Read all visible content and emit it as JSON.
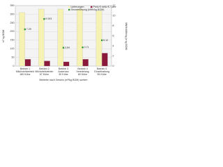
{
  "chart_data": {
    "type": "bar",
    "x_label": "Betriebe nach Gewinn (m³/kg BOM) sortiert",
    "y_label": "m³ kg BOM",
    "y2_label": "MWh/kWh/kg je kg BOM",
    "categories": [
      "Betrieb 1 Milchviehbetrieb 180 Kühe",
      "Betrieb 2 Milchviehbetrieb 57 Kühe",
      "Betrieb 3 Ackerbau 30 Kühe",
      "Betrieb 4 Veredelung 80 Kühe",
      "Betrieb 5 Einzelhaltung 55 Kühe"
    ],
    "series": [
      {
        "name": "Lieferungen",
        "color": "#f6f2b4",
        "values": [
          310,
          330,
          330,
          330,
          320
        ]
      },
      {
        "name": "Preis € netto € / Jahr",
        "color": "#8b1a3a",
        "values": [
          40,
          30,
          25,
          40,
          75
        ]
      },
      {
        "name": "Stromerlösung (kWh/kg BOM)",
        "color": "#3a9a3a",
        "axis": "y2",
        "values": [
          7.29,
          9.343,
          3.64,
          3.71,
          5.12
        ]
      }
    ],
    "ylim": [
      0,
      350
    ],
    "yticks": [
      0,
      50,
      100,
      150,
      200,
      250,
      300,
      350
    ],
    "y2lim": [
      0,
      12
    ],
    "y2ticks": [
      0,
      2,
      4,
      6,
      8,
      10,
      12
    ],
    "grid": true
  }
}
